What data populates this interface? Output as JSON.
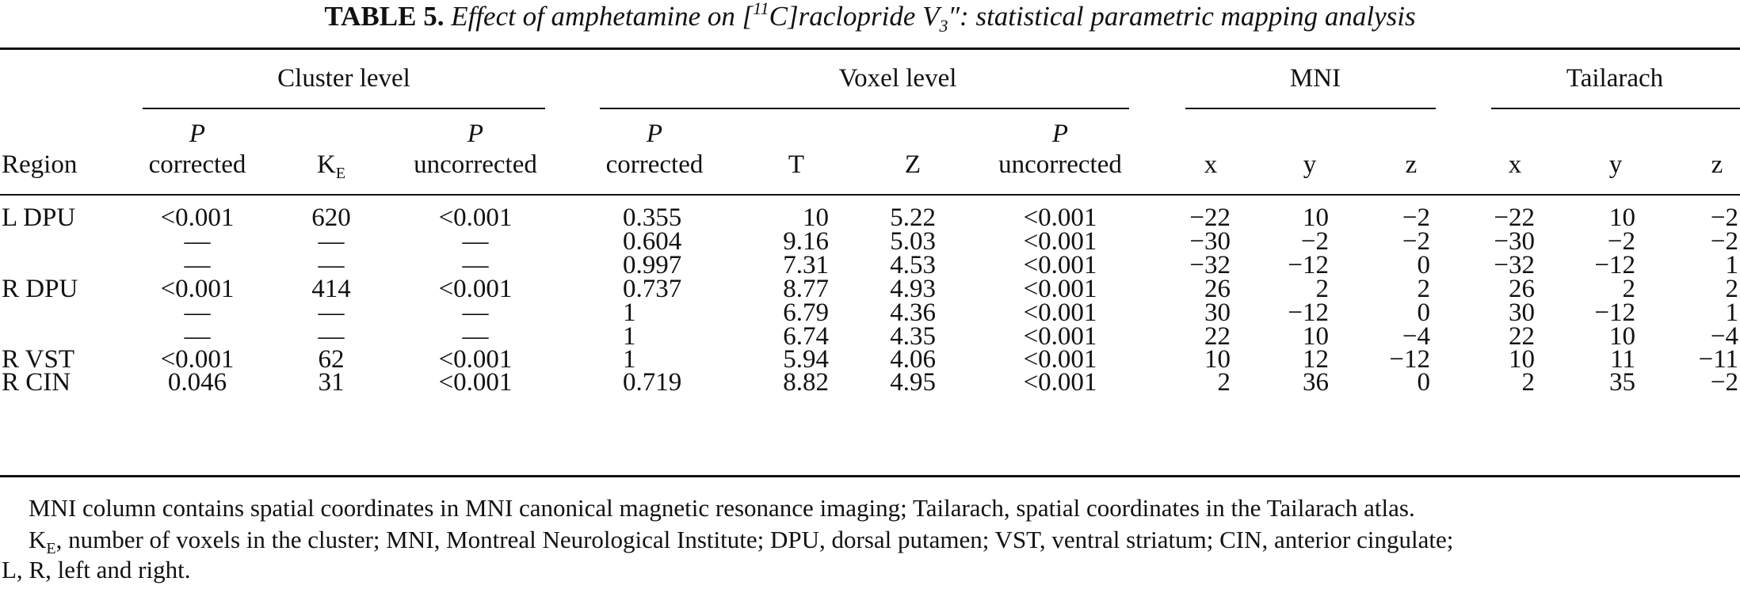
{
  "caption": {
    "label": "TABLE 5.",
    "text_prefix": "Effect of amphetamine on [",
    "isotope": "11",
    "text_mid": "C]raclopride V",
    "subscript": "3",
    "text_suffix": "″: statistical parametric mapping analysis"
  },
  "headers": {
    "groups": {
      "cluster": "Cluster level",
      "voxel": "Voxel level",
      "mni": "MNI",
      "tailarach": "Tailarach"
    },
    "region": "Region",
    "p_letter": "P",
    "corrected": "corrected",
    "uncorrected": "uncorrected",
    "ke_main": "K",
    "ke_sub": "E",
    "t": "T",
    "z_stat": "Z",
    "x": "x",
    "y": "y",
    "z": "z"
  },
  "rows": [
    {
      "region": "L DPU",
      "cluster_p_corrected": "<0.001",
      "ke": "620",
      "cluster_p_uncorrected": "<0.001",
      "voxel_p_corrected": "0.355",
      "t": "10",
      "z_score": "5.22",
      "voxel_p_uncorrected": "<0.001",
      "mni_x": "−22",
      "mni_y": "10",
      "mni_z": "−2",
      "tal_x": "−22",
      "tal_y": "10",
      "tal_z": "−2"
    },
    {
      "region": "",
      "cluster_p_corrected": "—",
      "ke": "—",
      "cluster_p_uncorrected": "—",
      "voxel_p_corrected": "0.604",
      "t": "9.16",
      "z_score": "5.03",
      "voxel_p_uncorrected": "<0.001",
      "mni_x": "−30",
      "mni_y": "−2",
      "mni_z": "−2",
      "tal_x": "−30",
      "tal_y": "−2",
      "tal_z": "−2"
    },
    {
      "region": "",
      "cluster_p_corrected": "—",
      "ke": "—",
      "cluster_p_uncorrected": "—",
      "voxel_p_corrected": "0.997",
      "t": "7.31",
      "z_score": "4.53",
      "voxel_p_uncorrected": "<0.001",
      "mni_x": "−32",
      "mni_y": "−12",
      "mni_z": "0",
      "tal_x": "−32",
      "tal_y": "−12",
      "tal_z": "1"
    },
    {
      "region": "R DPU",
      "cluster_p_corrected": "<0.001",
      "ke": "414",
      "cluster_p_uncorrected": "<0.001",
      "voxel_p_corrected": "0.737",
      "t": "8.77",
      "z_score": "4.93",
      "voxel_p_uncorrected": "<0.001",
      "mni_x": "26",
      "mni_y": "2",
      "mni_z": "2",
      "tal_x": "26",
      "tal_y": "2",
      "tal_z": "2"
    },
    {
      "region": "",
      "cluster_p_corrected": "—",
      "ke": "—",
      "cluster_p_uncorrected": "—",
      "voxel_p_corrected": "1",
      "t": "6.79",
      "z_score": "4.36",
      "voxel_p_uncorrected": "<0.001",
      "mni_x": "30",
      "mni_y": "−12",
      "mni_z": "0",
      "tal_x": "30",
      "tal_y": "−12",
      "tal_z": "1"
    },
    {
      "region": "",
      "cluster_p_corrected": "—",
      "ke": "—",
      "cluster_p_uncorrected": "—",
      "voxel_p_corrected": "1",
      "t": "6.74",
      "z_score": "4.35",
      "voxel_p_uncorrected": "<0.001",
      "mni_x": "22",
      "mni_y": "10",
      "mni_z": "−4",
      "tal_x": "22",
      "tal_y": "10",
      "tal_z": "−4"
    },
    {
      "region": "R VST",
      "cluster_p_corrected": "<0.001",
      "ke": "62",
      "cluster_p_uncorrected": "<0.001",
      "voxel_p_corrected": "1",
      "t": "5.94",
      "z_score": "4.06",
      "voxel_p_uncorrected": "<0.001",
      "mni_x": "10",
      "mni_y": "12",
      "mni_z": "−12",
      "tal_x": "10",
      "tal_y": "11",
      "tal_z": "−11"
    },
    {
      "region": "R CIN",
      "cluster_p_corrected": "0.046",
      "ke": "31",
      "cluster_p_uncorrected": "<0.001",
      "voxel_p_corrected": "0.719",
      "t": "8.82",
      "z_score": "4.95",
      "voxel_p_uncorrected": "<0.001",
      "mni_x": "2",
      "mni_y": "36",
      "mni_z": "0",
      "tal_x": "2",
      "tal_y": "35",
      "tal_z": "−2"
    }
  ],
  "footnotes": {
    "line1": "MNI column contains spatial coordinates in MNI canonical magnetic resonance imaging; Tailarach, spatial coordinates in the Tailarach atlas.",
    "line2_ke": "K",
    "line2_ke_sub": "E",
    "line2_rest": ", number of voxels in the cluster; MNI, Montreal Neurological Institute; DPU, dorsal putamen; VST, ventral striatum; CIN, anterior cingulate;",
    "line3": "L, R, left and right."
  }
}
